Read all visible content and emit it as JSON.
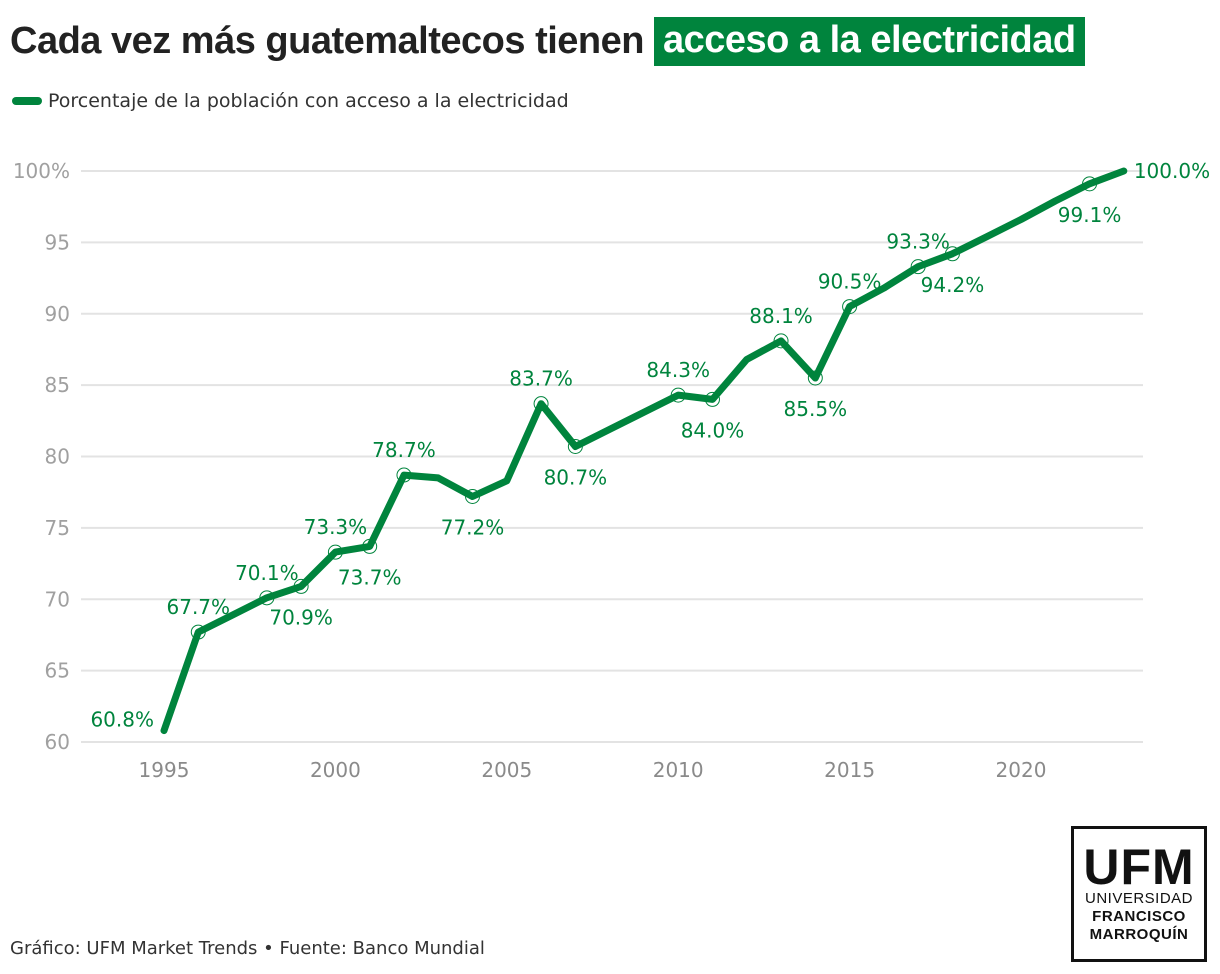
{
  "header": {
    "title_plain": "Cada vez más guatemaltecos tienen",
    "title_highlight": "acceso a la electricidad",
    "accent_color": "#00843d"
  },
  "legend": {
    "label": "Porcentaje de la población con acceso a la electricidad"
  },
  "footer": {
    "credit": "Gráfico: UFM Market Trends • Fuente: Banco Mundial"
  },
  "logo": {
    "mark": "UFM",
    "line1": "UNIVERSIDAD",
    "line2": "FRANCISCO",
    "line3": "MARROQUÍN"
  },
  "chart_data": {
    "type": "line",
    "title": "Cada vez más guatemaltecos tienen acceso a la electricidad",
    "xlabel": "",
    "ylabel": "",
    "xlim": [
      1993,
      2024
    ],
    "ylim": [
      60,
      100
    ],
    "grid": true,
    "legend_position": "top-left",
    "x_ticks": [
      1995,
      2000,
      2005,
      2010,
      2015,
      2020
    ],
    "y_ticks": [
      {
        "value": 60,
        "label": "60"
      },
      {
        "value": 65,
        "label": "65"
      },
      {
        "value": 70,
        "label": "70"
      },
      {
        "value": 75,
        "label": "75"
      },
      {
        "value": 80,
        "label": "80"
      },
      {
        "value": 85,
        "label": "85"
      },
      {
        "value": 90,
        "label": "90"
      },
      {
        "value": 95,
        "label": "95"
      },
      {
        "value": 100,
        "label": "100%"
      }
    ],
    "series": [
      {
        "name": "Porcentaje de la población con acceso a la electricidad",
        "color": "#00843d",
        "points": [
          {
            "x": 1995,
            "y": 60.8,
            "label": "60.8%",
            "pos": "left",
            "marker": false
          },
          {
            "x": 1996,
            "y": 67.7,
            "label": "67.7%",
            "pos": "above",
            "marker": true
          },
          {
            "x": 1997,
            "y": 68.9,
            "label": null,
            "marker": false
          },
          {
            "x": 1998,
            "y": 70.1,
            "label": "70.1%",
            "pos": "above",
            "marker": true
          },
          {
            "x": 1999,
            "y": 70.9,
            "label": "70.9%",
            "pos": "below",
            "marker": true
          },
          {
            "x": 2000,
            "y": 73.3,
            "label": "73.3%",
            "pos": "above",
            "marker": true
          },
          {
            "x": 2001,
            "y": 73.7,
            "label": "73.7%",
            "pos": "below",
            "marker": true
          },
          {
            "x": 2002,
            "y": 78.7,
            "label": "78.7%",
            "pos": "above",
            "marker": true
          },
          {
            "x": 2003,
            "y": 78.5,
            "label": null,
            "marker": false
          },
          {
            "x": 2004,
            "y": 77.2,
            "label": "77.2%",
            "pos": "below",
            "marker": true
          },
          {
            "x": 2005,
            "y": 78.3,
            "label": null,
            "marker": false
          },
          {
            "x": 2006,
            "y": 83.7,
            "label": "83.7%",
            "pos": "above",
            "marker": true
          },
          {
            "x": 2007,
            "y": 80.7,
            "label": "80.7%",
            "pos": "below",
            "marker": true
          },
          {
            "x": 2008,
            "y": 81.9,
            "label": null,
            "marker": false
          },
          {
            "x": 2009,
            "y": 83.1,
            "label": null,
            "marker": false
          },
          {
            "x": 2010,
            "y": 84.3,
            "label": "84.3%",
            "pos": "above",
            "marker": true
          },
          {
            "x": 2011,
            "y": 84.0,
            "label": "84.0%",
            "pos": "below",
            "marker": true
          },
          {
            "x": 2012,
            "y": 86.8,
            "label": null,
            "marker": false
          },
          {
            "x": 2013,
            "y": 88.1,
            "label": "88.1%",
            "pos": "above",
            "marker": true
          },
          {
            "x": 2014,
            "y": 85.5,
            "label": "85.5%",
            "pos": "below",
            "marker": true
          },
          {
            "x": 2015,
            "y": 90.5,
            "label": "90.5%",
            "pos": "above",
            "marker": true
          },
          {
            "x": 2016,
            "y": 91.8,
            "label": null,
            "marker": false
          },
          {
            "x": 2017,
            "y": 93.3,
            "label": "93.3%",
            "pos": "above",
            "marker": true
          },
          {
            "x": 2018,
            "y": 94.2,
            "label": "94.2%",
            "pos": "below",
            "marker": true
          },
          {
            "x": 2019,
            "y": 95.4,
            "label": null,
            "marker": false
          },
          {
            "x": 2020,
            "y": 96.6,
            "label": null,
            "marker": false
          },
          {
            "x": 2021,
            "y": 97.9,
            "label": null,
            "marker": false
          },
          {
            "x": 2022,
            "y": 99.1,
            "label": "99.1%",
            "pos": "below",
            "marker": true
          },
          {
            "x": 2023,
            "y": 100.0,
            "label": "100.0%",
            "pos": "right",
            "marker": false
          }
        ]
      }
    ]
  }
}
